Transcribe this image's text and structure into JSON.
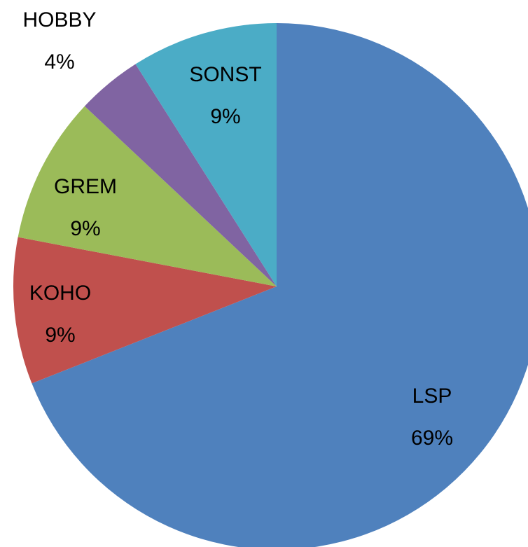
{
  "chart_data": {
    "type": "pie",
    "categories": [
      "LSP",
      "KOHO",
      "GREM",
      "HOBBY",
      "SONST"
    ],
    "values": [
      69,
      9,
      9,
      4,
      9
    ],
    "value_labels": [
      "69%",
      "9%",
      "9%",
      "4%",
      "9%"
    ],
    "colors": [
      "#4f81bd",
      "#c0504d",
      "#9bbb59",
      "#8064a2",
      "#4bacc6"
    ]
  }
}
